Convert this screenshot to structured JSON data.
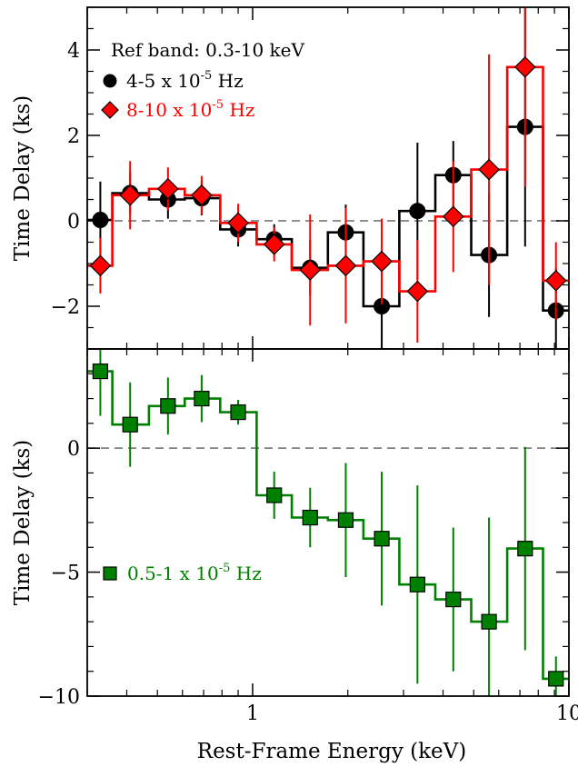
{
  "chart_data": [
    {
      "type": "step-line-scatter",
      "panel": "top",
      "annotation": "Ref band: 0.3-10 keV",
      "ylabel": "Time Delay (ks)",
      "x_scale": "log",
      "xlim": [
        0.3,
        10
      ],
      "ylim": [
        -3,
        5
      ],
      "yticks": [
        -2,
        0,
        2,
        4
      ],
      "ytick_labels": [
        "−2",
        "0",
        "2",
        "4"
      ],
      "zero_line": true,
      "series": [
        {
          "name": "4-5 x 10-5 Hz",
          "legend_base": "4-5 x 10",
          "legend_exp": "-5",
          "legend_unit": " Hz",
          "color": "#000000",
          "marker": "circle",
          "edges": [
            0.3,
            0.36,
            0.47,
            0.61,
            0.79,
            1.03,
            1.33,
            1.73,
            2.24,
            2.91,
            3.78,
            4.91,
            6.38,
            8.28,
            10.0
          ],
          "x": [
            0.33,
            0.41,
            0.54,
            0.69,
            0.9,
            1.17,
            1.52,
            1.97,
            2.56,
            3.32,
            4.31,
            5.59,
            7.27,
            9.1
          ],
          "y": [
            0.02,
            0.65,
            0.5,
            0.53,
            -0.2,
            -0.43,
            -1.1,
            -0.27,
            -2.0,
            0.23,
            1.07,
            -0.8,
            2.2,
            -2.1
          ],
          "err": [
            0.9,
            0.5,
            0.45,
            0.4,
            0.4,
            0.35,
            0.65,
            0.65,
            1.3,
            1.6,
            0.8,
            1.45,
            2.8,
            1.0
          ]
        },
        {
          "name": "8-10 x 10-5 Hz",
          "legend_base": "8-10 x 10",
          "legend_exp": "-5",
          "legend_unit": " Hz",
          "color": "#ff0000",
          "marker": "diamond",
          "edges": [
            0.3,
            0.36,
            0.47,
            0.61,
            0.79,
            1.03,
            1.33,
            1.73,
            2.24,
            2.91,
            3.78,
            4.91,
            6.38,
            8.28,
            10.0
          ],
          "x": [
            0.33,
            0.41,
            0.54,
            0.69,
            0.9,
            1.17,
            1.52,
            1.97,
            2.56,
            3.32,
            4.31,
            5.59,
            7.27,
            9.1
          ],
          "y": [
            -1.05,
            0.6,
            0.75,
            0.6,
            -0.05,
            -0.55,
            -1.15,
            -1.05,
            -0.95,
            -1.65,
            0.1,
            1.2,
            3.6,
            -1.4
          ],
          "err": [
            0.65,
            0.8,
            0.5,
            0.45,
            0.45,
            0.4,
            1.3,
            1.35,
            1.0,
            1.2,
            1.3,
            2.7,
            2.8,
            0.9
          ]
        }
      ]
    },
    {
      "type": "step-line-scatter",
      "panel": "bottom",
      "xlabel": "Rest-Frame Energy (keV)",
      "ylabel": "Time Delay (ks)",
      "x_scale": "log",
      "xlim": [
        0.3,
        10
      ],
      "xticks": [
        1,
        10
      ],
      "xtick_labels": [
        "1",
        "10"
      ],
      "ylim": [
        -10,
        4
      ],
      "yticks": [
        -10,
        -5,
        0
      ],
      "ytick_labels": [
        "−10",
        "−5",
        "0"
      ],
      "zero_line": true,
      "series": [
        {
          "name": "0.5-1 x 10-5 Hz",
          "legend_base": "0.5-1 x 10",
          "legend_exp": "-5",
          "legend_unit": " Hz",
          "color": "#008000",
          "marker": "square",
          "edges": [
            0.3,
            0.36,
            0.47,
            0.61,
            0.79,
            1.03,
            1.33,
            1.73,
            2.24,
            2.91,
            3.78,
            4.91,
            6.38,
            8.28,
            10.0
          ],
          "x": [
            0.33,
            0.41,
            0.54,
            0.69,
            0.9,
            1.17,
            1.52,
            1.97,
            2.56,
            3.32,
            4.31,
            5.59,
            7.27,
            9.1
          ],
          "y": [
            3.1,
            0.95,
            1.7,
            2.0,
            1.45,
            -1.9,
            -2.8,
            -2.9,
            -3.65,
            -5.5,
            -6.1,
            -7.0,
            -4.05,
            -9.3
          ],
          "err": [
            1.8,
            1.7,
            1.15,
            0.95,
            0.5,
            0.95,
            1.2,
            2.3,
            2.7,
            4.0,
            2.9,
            4.2,
            4.1,
            0.9
          ]
        }
      ]
    }
  ]
}
